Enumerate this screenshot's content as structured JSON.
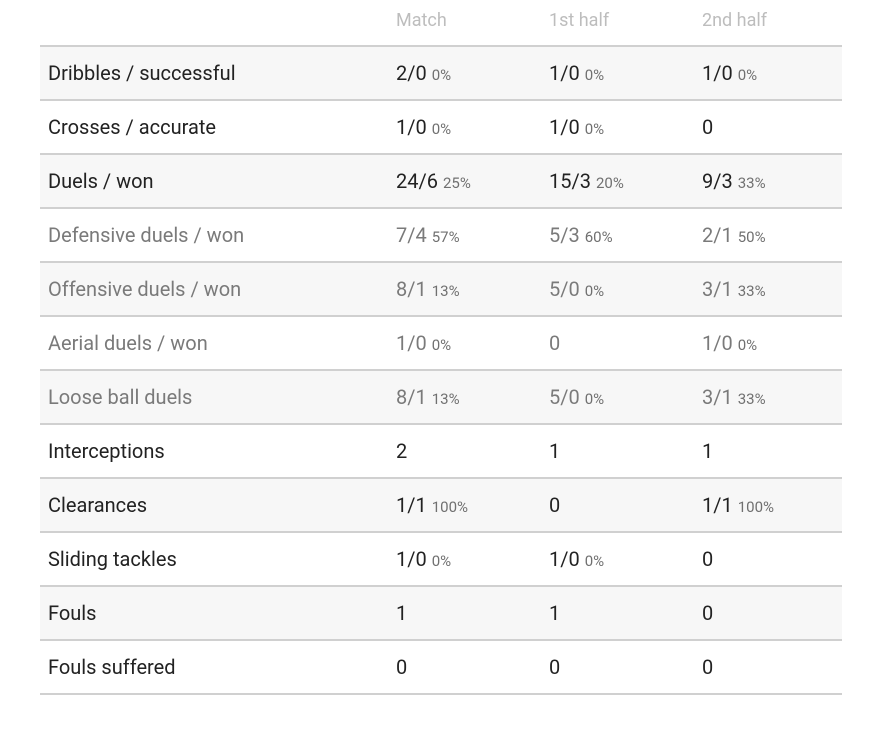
{
  "table": {
    "header": [
      "Match",
      "1st half",
      "2nd half"
    ],
    "rows": [
      {
        "label": "Dribbles / successful",
        "cells": [
          {
            "value": "2/0",
            "pct": "0%"
          },
          {
            "value": "1/0",
            "pct": "0%"
          },
          {
            "value": "1/0",
            "pct": "0%"
          }
        ]
      },
      {
        "label": "Crosses / accurate",
        "cells": [
          {
            "value": "1/0",
            "pct": "0%"
          },
          {
            "value": "1/0",
            "pct": "0%"
          },
          {
            "value": "0"
          }
        ]
      },
      {
        "label": "Duels / won",
        "cells": [
          {
            "value": "24/6",
            "pct": "25%"
          },
          {
            "value": "15/3",
            "pct": "20%"
          },
          {
            "value": "9/3",
            "pct": "33%"
          }
        ]
      },
      {
        "label": "Defensive duels / won",
        "cells": [
          {
            "value": "7/4",
            "pct": "57%"
          },
          {
            "value": "5/3",
            "pct": "60%"
          },
          {
            "value": "2/1",
            "pct": "50%"
          }
        ]
      },
      {
        "label": "Offensive duels / won",
        "cells": [
          {
            "value": "8/1",
            "pct": "13%"
          },
          {
            "value": "5/0",
            "pct": "0%"
          },
          {
            "value": "3/1",
            "pct": "33%"
          }
        ]
      },
      {
        "label": "Aerial duels / won",
        "cells": [
          {
            "value": "1/0",
            "pct": "0%"
          },
          {
            "value": "0"
          },
          {
            "value": "1/0",
            "pct": "0%"
          }
        ]
      },
      {
        "label": "Loose ball duels",
        "cells": [
          {
            "value": "8/1",
            "pct": "13%"
          },
          {
            "value": "5/0",
            "pct": "0%"
          },
          {
            "value": "3/1",
            "pct": "33%"
          }
        ]
      },
      {
        "label": "Interceptions",
        "cells": [
          {
            "value": "2"
          },
          {
            "value": "1"
          },
          {
            "value": "1"
          }
        ]
      },
      {
        "label": "Clearances",
        "cells": [
          {
            "value": "1/1",
            "pct": "100%"
          },
          {
            "value": "0"
          },
          {
            "value": "1/1",
            "pct": "100%"
          }
        ]
      },
      {
        "label": "Sliding tackles",
        "cells": [
          {
            "value": "1/0",
            "pct": "0%"
          },
          {
            "value": "1/0",
            "pct": "0%"
          },
          {
            "value": "0"
          }
        ]
      },
      {
        "label": "Fouls",
        "cells": [
          {
            "value": "1"
          },
          {
            "value": "1"
          },
          {
            "value": "0"
          }
        ]
      },
      {
        "label": "Fouls suffered",
        "cells": [
          {
            "value": "0"
          },
          {
            "value": "0"
          },
          {
            "value": "0"
          }
        ]
      }
    ]
  }
}
